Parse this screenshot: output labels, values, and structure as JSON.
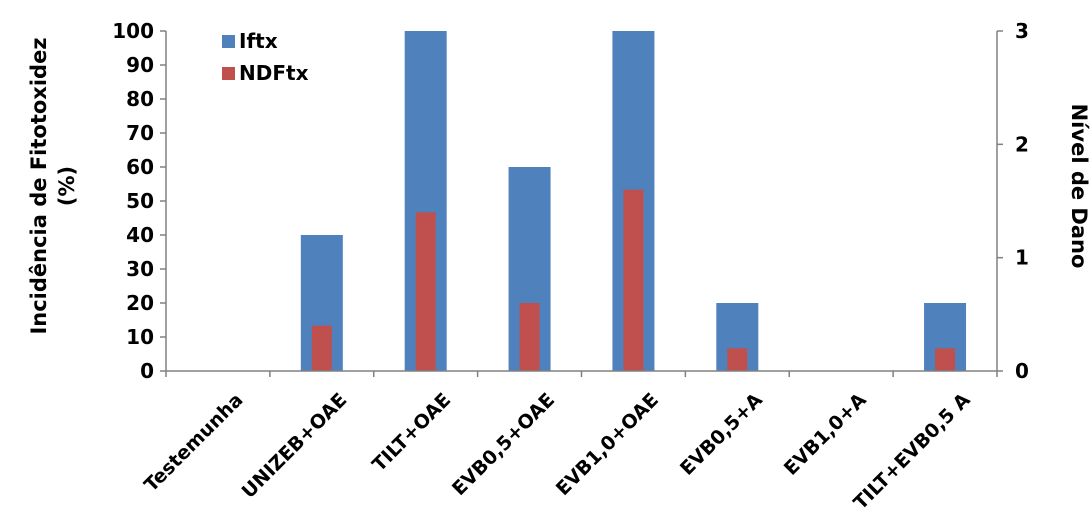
{
  "chart_data": {
    "type": "bar",
    "categories": [
      "Testemunha",
      "UNIZEB+OAE",
      "TILT+OAE",
      "EVB0,5+OAE",
      "EVB1,0+OAE",
      "EVB0,5+A",
      "EVB1,0+A",
      "TILT+EVB0,5 A"
    ],
    "series": [
      {
        "name": "Iftx",
        "axis": "left",
        "color": "#4F81BD",
        "values": [
          0,
          40,
          100,
          60,
          100,
          20,
          0,
          20
        ]
      },
      {
        "name": "NDFtx",
        "axis": "right",
        "color": "#C0504D",
        "values": [
          0,
          0.4,
          1.4,
          0.6,
          1.6,
          0.2,
          0,
          0.2
        ]
      }
    ],
    "ylabel": "Incidência de Fitotoxidez (%)",
    "ylabel_line1": "Incidência de Fitotoxidez",
    "ylabel_line2": "(%)",
    "y2label": "Nível de Dano",
    "ylim": [
      0,
      100
    ],
    "y2lim": [
      0,
      3
    ],
    "yticks": [
      "0",
      "10",
      "20",
      "30",
      "40",
      "50",
      "60",
      "70",
      "80",
      "90",
      "100"
    ],
    "y2ticks": [
      "0",
      "1",
      "2",
      "3"
    ],
    "legend_position": "top-left",
    "grid": false
  }
}
